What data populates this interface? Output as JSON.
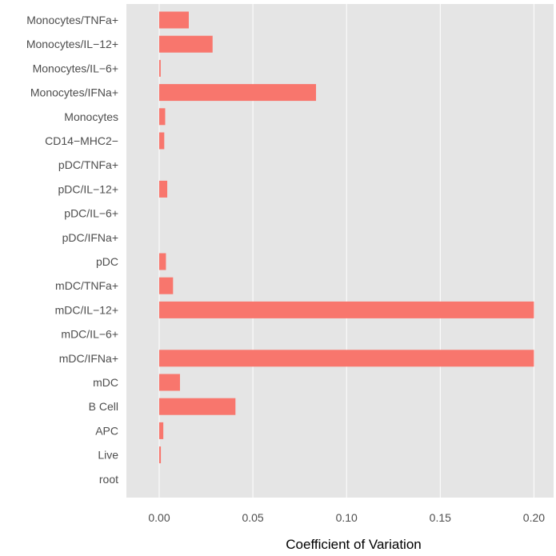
{
  "chart_data": {
    "type": "bar",
    "orientation": "horizontal",
    "categories": [
      "Monocytes/TNFa+",
      "Monocytes/IL−12+",
      "Monocytes/IL−6+",
      "Monocytes/IFNa+",
      "Monocytes",
      "CD14−MHC2−",
      "pDC/TNFa+",
      "pDC/IL−12+",
      "pDC/IL−6+",
      "pDC/IFNa+",
      "pDC",
      "mDC/TNFa+",
      "mDC/IL−12+",
      "mDC/IL−6+",
      "mDC/IFNa+",
      "mDC",
      "B Cell",
      "APC",
      "Live",
      "root"
    ],
    "values": [
      0.0158,
      0.0285,
      0.0008,
      0.0837,
      0.0032,
      0.0027,
      0.0,
      0.0043,
      0.0,
      0.0,
      0.0036,
      0.0074,
      0.2,
      0.0,
      0.2,
      0.0111,
      0.0407,
      0.0022,
      0.0009,
      0.0
    ],
    "xlabel": "Coefficient of Variation",
    "ylabel": "",
    "xlim": [
      -0.0175,
      0.2105
    ],
    "xticks": [
      0.0,
      0.05,
      0.1,
      0.15,
      0.2
    ],
    "xtick_labels": [
      "0.00",
      "0.05",
      "0.10",
      "0.15",
      "0.20"
    ],
    "grid": true,
    "bar_color": "#f8766d",
    "panel_background": "#e5e5e5",
    "grid_color": "#ffffff"
  }
}
